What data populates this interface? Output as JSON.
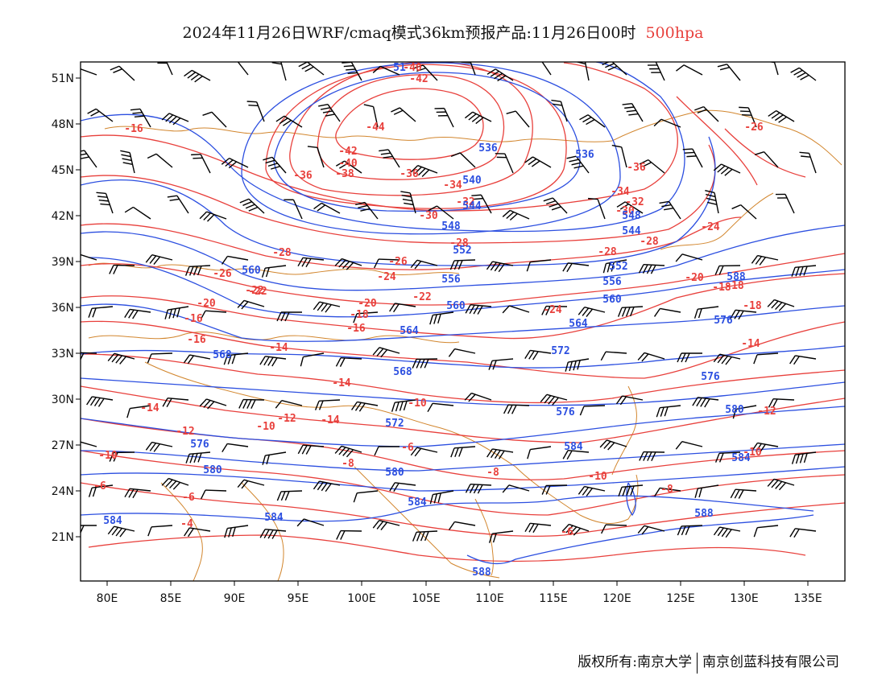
{
  "title": {
    "main": "2024年11月26日WRF/cmaq模式36km预报产品:11月26日00时",
    "level": "500hpa"
  },
  "footer": {
    "left": "版权所有:南京大学",
    "right": "南京创蓝科技有限公司"
  },
  "axes": {
    "lat_ticks": [
      "51N",
      "48N",
      "45N",
      "42N",
      "39N",
      "36N",
      "33N",
      "30N",
      "27N",
      "24N",
      "21N"
    ],
    "lon_ticks": [
      "80E",
      "85E",
      "90E",
      "95E",
      "100E",
      "105E",
      "110E",
      "115E",
      "120E",
      "125E",
      "130E",
      "135E"
    ]
  },
  "colors": {
    "temperature": "#e8403c",
    "height": "#2c4fe0",
    "wind": "#000000",
    "border": "#d2862e"
  },
  "temperature_labels": [
    "-40",
    "-42",
    "-44",
    "-42",
    "-40",
    "-38",
    "-36",
    "-36",
    "-36",
    "-34",
    "-34",
    "-32",
    "-32",
    "-30",
    "-30",
    "-28",
    "-28",
    "-28",
    "-26",
    "-26",
    "-28",
    "-24",
    "-24",
    "-22",
    "-22",
    "-20",
    "-20",
    "-20",
    "-18",
    "-18",
    "-18",
    "-16",
    "-16",
    "-16",
    "-16",
    "-14",
    "-14",
    "-14",
    "-14",
    "-12",
    "-12",
    "-12",
    "-10",
    "-10",
    "-10",
    "-10",
    "-8",
    "-8",
    "-8",
    "-6",
    "-6",
    "-6",
    "-6",
    "-4",
    "-24",
    "-22",
    "-18",
    "-14",
    "-10",
    "-26"
  ],
  "height_labels": [
    "51",
    "536",
    "536",
    "540",
    "544",
    "548",
    "552",
    "544",
    "548",
    "552",
    "556",
    "560",
    "556",
    "560",
    "560",
    "564",
    "564",
    "568",
    "568",
    "572",
    "576",
    "576",
    "576",
    "572",
    "576",
    "580",
    "580",
    "580",
    "584",
    "584",
    "584",
    "584",
    "588",
    "588",
    "588",
    "584"
  ]
}
